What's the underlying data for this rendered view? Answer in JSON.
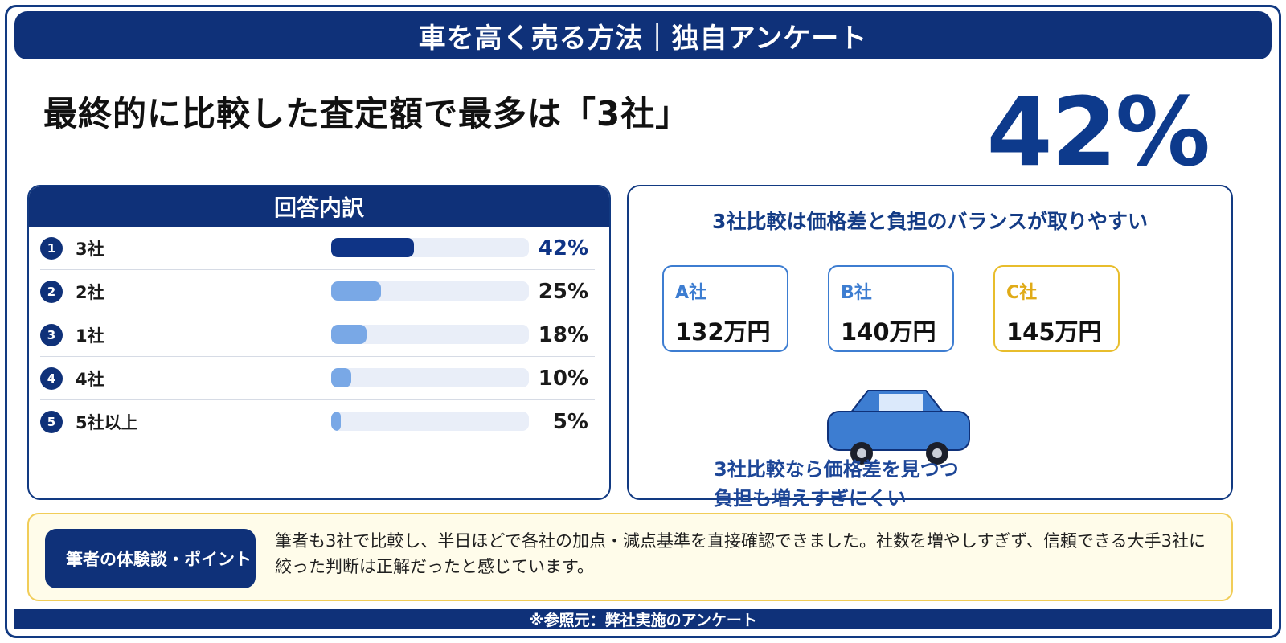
{
  "banner": {
    "title": "車を高く売る方法｜独自アンケート"
  },
  "headline": "最終的に比較した査定額で最多は「3社」",
  "highlight_value": "42%",
  "breakdown": {
    "title": "回答内訳"
  },
  "chart_data": {
    "type": "bar",
    "title": "回答内訳",
    "categories": [
      "3社",
      "2社",
      "1社",
      "4社",
      "5社以上"
    ],
    "values": [
      42,
      25,
      18,
      10,
      5
    ],
    "value_labels": [
      "42%",
      "25%",
      "18%",
      "10%",
      "5%"
    ],
    "ranks": [
      "1",
      "2",
      "3",
      "4",
      "5"
    ],
    "unit": "%",
    "ylim": [
      0,
      100
    ],
    "colors": {
      "primary": "#0f3486",
      "secondary": "#79a8e6",
      "track": "#e9eef8"
    }
  },
  "comparison": {
    "title": "3社比較は価格差と負担のバランスが取りやすい",
    "cards": [
      {
        "name": "A社",
        "price": "132万円",
        "accent": "#3d7dd1"
      },
      {
        "name": "B社",
        "price": "140万円",
        "accent": "#3d7dd1"
      },
      {
        "name": "C社",
        "price": "145万円",
        "accent": "#e8bd2c"
      }
    ],
    "note_line1": "3社比較なら価格差を見つつ",
    "note_line2": "負担も増えすぎにくい"
  },
  "comment": {
    "badge": "筆者の体験談・ポイント",
    "text": "筆者も3社で比較し、半日ほどで各社の加点・減点基準を直接確認できました。社数を増やしすぎず、信頼できる大手3社に絞った判断は正解だったと感じています。"
  },
  "footer": {
    "source": "※参照元：弊社実施のアンケート"
  },
  "colors": {
    "navy": "#0f3179",
    "accent_blue": "#3d7dd1",
    "gold": "#e8bd2c"
  }
}
